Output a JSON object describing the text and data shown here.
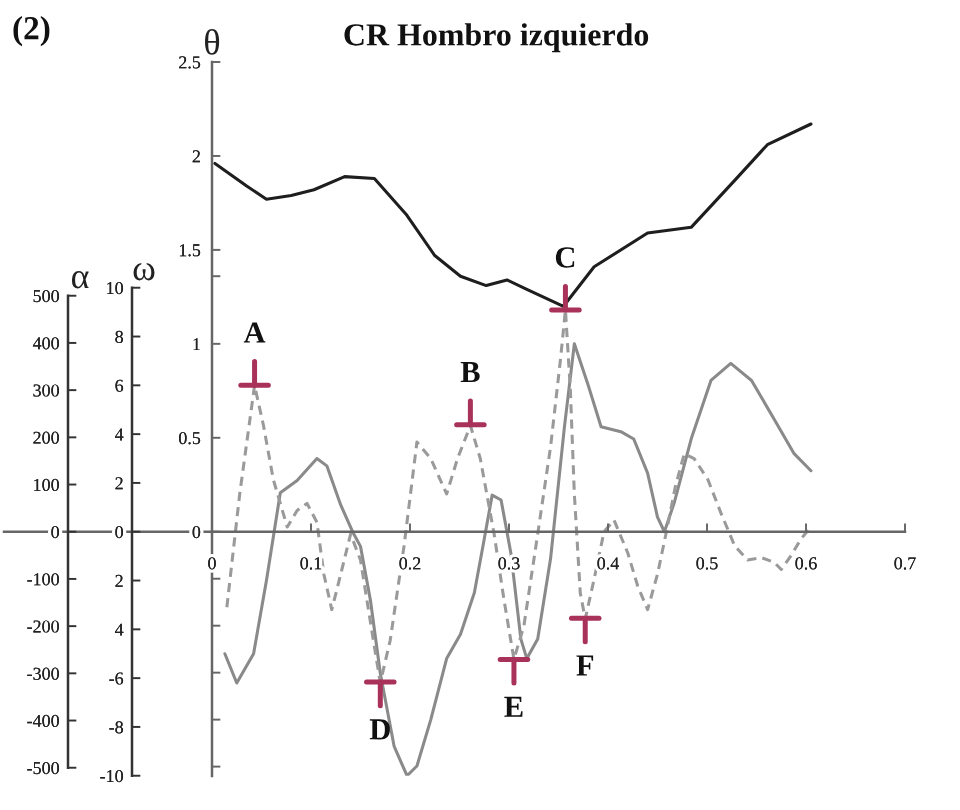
{
  "chart_data": {
    "type": "line",
    "title": "CR Hombro izquierdo",
    "ylabel": "θ",
    "y2label": "ω",
    "y3label": "α",
    "xlim": [
      0,
      0.7
    ],
    "xticks": [
      0,
      0.1,
      0.2,
      0.3,
      0.4,
      0.5,
      0.6,
      0.7
    ],
    "ylim": [
      -1.3,
      2.5
    ],
    "yticks": [
      {
        "value": -1.25,
        "label": null
      },
      {
        "value": -1,
        "label": null
      },
      {
        "value": -0.75,
        "label": null
      },
      {
        "value": -0.5,
        "label": null
      },
      {
        "value": -0.25,
        "label": null
      },
      0,
      0.5,
      1,
      {
        "value": 1.36,
        "label": null
      },
      1.5,
      2,
      2.5
    ],
    "y2lim": [
      -10,
      10
    ],
    "y2ticks": [
      -10,
      -8,
      -6,
      {
        "value": -4,
        "label": "4"
      },
      {
        "value": -2,
        "label": "2"
      },
      0,
      2,
      4,
      6,
      8,
      10
    ],
    "y3lim": [
      -500,
      500
    ],
    "y3ticks": [
      -500,
      -400,
      -300,
      -200,
      -100,
      0,
      100,
      200,
      300,
      400,
      500
    ],
    "series": [
      {
        "axis": "y",
        "color": "#1e1e1e",
        "line_style": "solid",
        "x": [
          0.003,
          0.035,
          0.055,
          0.08,
          0.103,
          0.134,
          0.164,
          0.196,
          0.225,
          0.251,
          0.277,
          0.298,
          0.318,
          0.355,
          0.386,
          0.44,
          0.484,
          0.528,
          0.561,
          0.605
        ],
        "values": [
          1.96,
          1.84,
          1.77,
          1.79,
          1.82,
          1.89,
          1.88,
          1.69,
          1.47,
          1.36,
          1.31,
          1.34,
          1.29,
          1.2,
          1.41,
          1.59,
          1.62,
          1.87,
          2.06,
          2.17
        ]
      },
      {
        "axis": "y2",
        "color": "#8a8a8a",
        "line_style": "solid",
        "x": [
          0.013,
          0.025,
          0.042,
          0.055,
          0.069,
          0.086,
          0.106,
          0.116,
          0.13,
          0.142,
          0.15,
          0.16,
          0.17,
          0.184,
          0.197,
          0.207,
          0.221,
          0.237,
          0.251,
          0.265,
          0.275,
          0.283,
          0.292,
          0.302,
          0.312,
          0.318,
          0.329,
          0.342,
          0.356,
          0.366,
          0.38,
          0.393,
          0.413,
          0.426,
          0.44,
          0.45,
          0.457,
          0.467,
          0.484,
          0.504,
          0.524,
          0.545,
          0.568,
          0.588,
          0.605
        ],
        "values": [
          -5.0,
          -6.2,
          -5.0,
          -2.0,
          1.6,
          2.1,
          3.0,
          2.7,
          1.1,
          0.0,
          -0.6,
          -2.8,
          -5.8,
          -8.8,
          -10.0,
          -9.6,
          -7.7,
          -5.2,
          -4.2,
          -2.5,
          -0.3,
          1.5,
          1.3,
          -0.9,
          -4.4,
          -5.2,
          -4.4,
          -1.1,
          4.3,
          7.7,
          6.0,
          4.3,
          4.1,
          3.8,
          2.4,
          0.6,
          0.0,
          1.2,
          3.8,
          6.2,
          6.9,
          6.2,
          4.6,
          3.2,
          2.5
        ]
      },
      {
        "axis": "y3",
        "color": "#9a9a9a",
        "line_style": "dashed",
        "x": [
          0.015,
          0.028,
          0.043,
          0.052,
          0.062,
          0.076,
          0.086,
          0.096,
          0.106,
          0.113,
          0.121,
          0.13,
          0.14,
          0.15,
          0.163,
          0.17,
          0.18,
          0.194,
          0.207,
          0.221,
          0.237,
          0.248,
          0.261,
          0.271,
          0.285,
          0.295,
          0.305,
          0.315,
          0.329,
          0.342,
          0.352,
          0.357,
          0.362,
          0.366,
          0.372,
          0.377,
          0.386,
          0.396,
          0.406,
          0.42,
          0.43,
          0.44,
          0.45,
          0.459,
          0.468,
          0.477,
          0.487,
          0.501,
          0.514,
          0.528,
          0.541,
          0.555,
          0.568,
          0.575,
          0.585,
          0.595,
          0.603
        ],
        "values": [
          -160,
          80,
          310,
          225,
          110,
          10,
          45,
          60,
          20,
          -90,
          -165,
          -90,
          -5,
          -60,
          -230,
          -320,
          -230,
          -30,
          190,
          155,
          80,
          155,
          225,
          155,
          -5,
          -145,
          -270,
          -200,
          -5,
          180,
          365,
          470,
          300,
          80,
          -130,
          -185,
          -100,
          0,
          25,
          -45,
          -115,
          -165,
          -90,
          0,
          95,
          165,
          155,
          110,
          40,
          -30,
          -60,
          -55,
          -65,
          -80,
          -50,
          -15,
          5
        ]
      }
    ],
    "annotations": [
      "(2)",
      {
        "text": "A",
        "x": 0.043,
        "y": 0.78
      },
      {
        "text": "B",
        "x": 0.261,
        "y": 0.57
      },
      {
        "text": "C",
        "x": 0.357,
        "y": 1.18
      },
      {
        "text": "D",
        "x": 0.17,
        "y": -0.8
      },
      {
        "text": "E",
        "x": 0.305,
        "y": -0.68
      },
      {
        "text": "F",
        "x": 0.377,
        "y": -0.46
      }
    ]
  }
}
